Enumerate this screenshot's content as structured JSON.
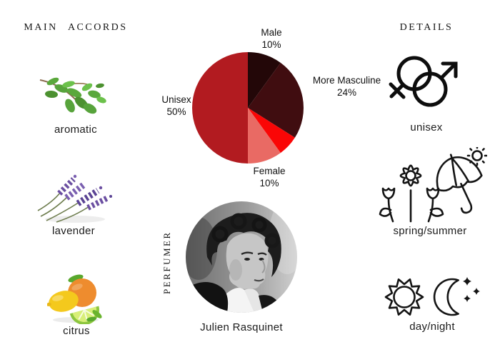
{
  "header_left": "MAIN ACCORDS",
  "header_right": "DETAILS",
  "accords": [
    {
      "label": "aromatic"
    },
    {
      "label": "lavender"
    },
    {
      "label": "citrus"
    }
  ],
  "chart_data": {
    "type": "pie",
    "title": "",
    "slices": [
      {
        "label": "Male",
        "value": 10,
        "pct_label": "10%",
        "color": "#230708"
      },
      {
        "label": "More Masculine",
        "value": 24,
        "pct_label": "24%",
        "color": "#400d10"
      },
      {
        "label": "",
        "value": 6,
        "pct_label": "",
        "color": "#fa0606"
      },
      {
        "label": "Female",
        "value": 10,
        "pct_label": "10%",
        "color": "#e96a64"
      },
      {
        "label": "Unisex",
        "value": 50,
        "pct_label": "50%",
        "color": "#b21b20"
      }
    ],
    "start_angle_deg": -90,
    "direction": "clockwise",
    "labels": "outside",
    "legend": "none"
  },
  "perfumer": {
    "section_label": "PERFUMER",
    "name": "Julien Rasquinet"
  },
  "details": [
    {
      "label": "unisex"
    },
    {
      "label": "spring/summer"
    },
    {
      "label": "day/night"
    }
  ],
  "colors": {
    "background": "#ffffff",
    "text": "#1a1a1a",
    "icon_line": "#141414"
  }
}
